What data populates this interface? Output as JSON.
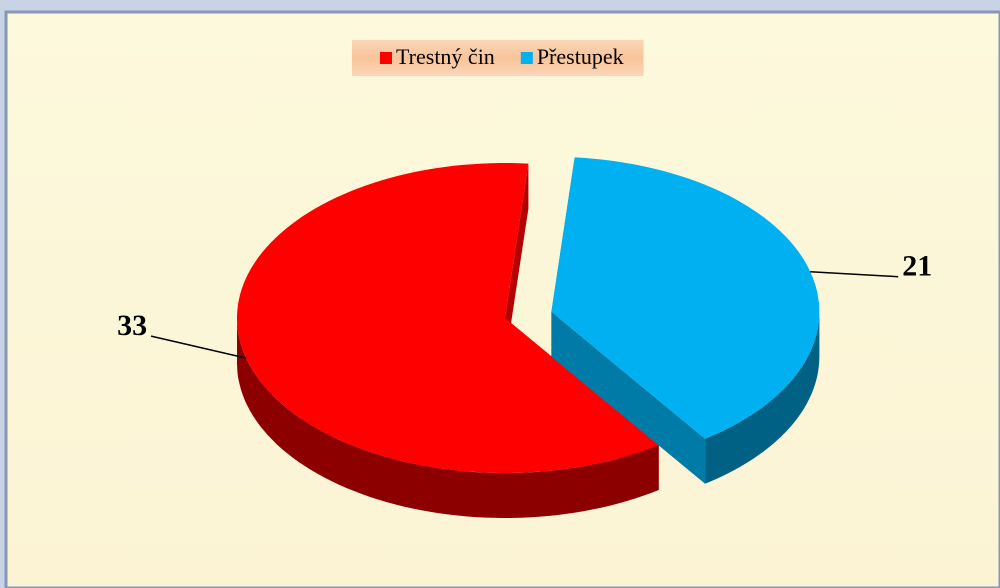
{
  "chart_data": {
    "type": "pie",
    "categories": [
      "Trestný čin",
      "Přestupek"
    ],
    "values": [
      33,
      21
    ],
    "colors": [
      "#ff0000",
      "#00b0f0"
    ],
    "legend": "top"
  }
}
